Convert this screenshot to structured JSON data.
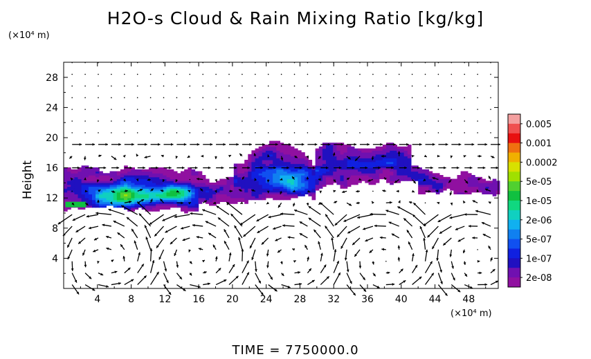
{
  "chart_data": {
    "type": "heatmap",
    "title": "H2O-s Cloud & Rain Mixing Ratio [kg/kg]",
    "xlabel": "",
    "ylabel": "Height",
    "x_unit": "(×10⁴ m)",
    "y_unit": "(×10⁴ m)",
    "xlim": [
      0,
      51.5
    ],
    "ylim": [
      0,
      30
    ],
    "x_ticks": [
      4,
      8,
      12,
      16,
      20,
      24,
      28,
      32,
      36,
      40,
      44,
      48
    ],
    "y_ticks": [
      4,
      8,
      12,
      16,
      20,
      24,
      28
    ],
    "colorbar": {
      "labels": [
        "0.005",
        "0.001",
        "0.0002",
        "5e-05",
        "1e-05",
        "2e-06",
        "5e-07",
        "1e-07",
        "2e-08"
      ],
      "colors": [
        "#f4a0a0",
        "#f05050",
        "#e81010",
        "#f07010",
        "#f0b000",
        "#d8e000",
        "#a0e000",
        "#50d030",
        "#10c040",
        "#10d880",
        "#10d0c0",
        "#10b0f0",
        "#1080f0",
        "#1050f0",
        "#1020e0",
        "#2010c0",
        "#7010b0",
        "#9010a0"
      ]
    },
    "grid": false,
    "annotations": [
      "TIME  =  7750000.0"
    ]
  }
}
